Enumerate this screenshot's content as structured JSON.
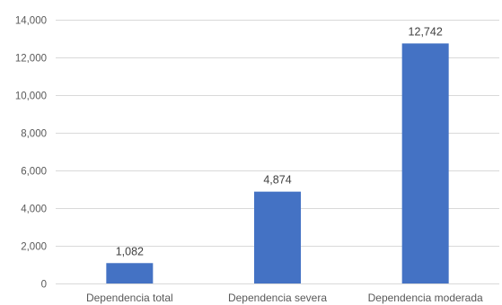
{
  "chart_data": {
    "type": "bar",
    "title": "",
    "xlabel": "",
    "ylabel": "",
    "categories": [
      "Dependencia total",
      "Dependencia severa",
      "Dependencia moderada"
    ],
    "values": [
      1082,
      4874,
      12742
    ],
    "data_labels": [
      "1,082",
      "4,874",
      "12,742"
    ],
    "ylim": [
      0,
      14000
    ],
    "y_ticks": [
      0,
      2000,
      4000,
      6000,
      8000,
      10000,
      12000,
      14000
    ],
    "y_tick_labels": [
      "0",
      "2,000",
      "4,000",
      "6,000",
      "8,000",
      "10,000",
      "12,000",
      "14,000"
    ],
    "grid": true,
    "legend": "none",
    "bar_color": "#4472c4",
    "gridline_color": "#d9d9d9",
    "text_color": "#595959"
  }
}
